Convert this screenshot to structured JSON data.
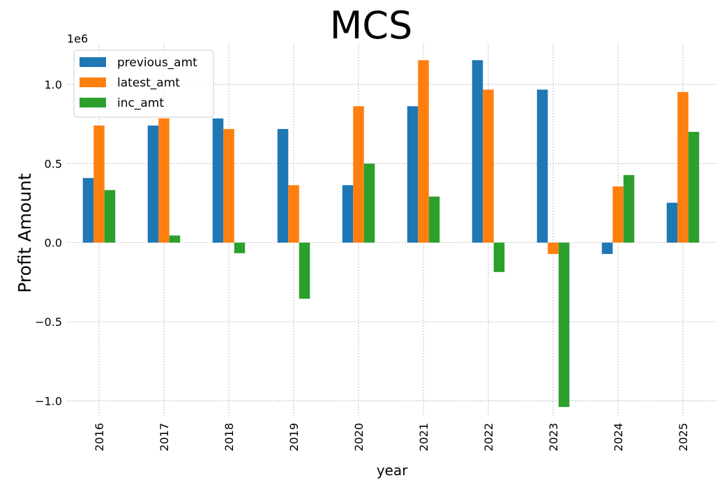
{
  "chart_data": {
    "type": "bar",
    "title": "MCS",
    "xlabel": "year",
    "ylabel": "Profit Amount",
    "y_offset_label": "1e6",
    "categories": [
      "2016",
      "2017",
      "2018",
      "2019",
      "2020",
      "2021",
      "2022",
      "2023",
      "2024",
      "2025"
    ],
    "series": [
      {
        "name": "previous_amt",
        "color": "#1f77b4",
        "values": [
          408000,
          740000,
          785000,
          718000,
          363000,
          862000,
          1153000,
          967000,
          -72000,
          252000
        ]
      },
      {
        "name": "latest_amt",
        "color": "#ff7f0e",
        "values": [
          740000,
          785000,
          718000,
          363000,
          862000,
          1153000,
          967000,
          -72000,
          355000,
          952000
        ]
      },
      {
        "name": "inc_amt",
        "color": "#2ca02c",
        "values": [
          332000,
          45000,
          -67000,
          -355000,
          499000,
          291000,
          -186000,
          -1039000,
          427000,
          700000
        ]
      }
    ],
    "y_ticks": [
      1.0,
      0.5,
      0.0,
      -0.5,
      -1.0
    ],
    "y_tick_labels": [
      "1.0",
      "0.5",
      "0.0",
      "−0.5",
      "−1.0"
    ],
    "ylim": [
      -1100000,
      1260000
    ],
    "grid": true,
    "legend_position": "top-left"
  }
}
